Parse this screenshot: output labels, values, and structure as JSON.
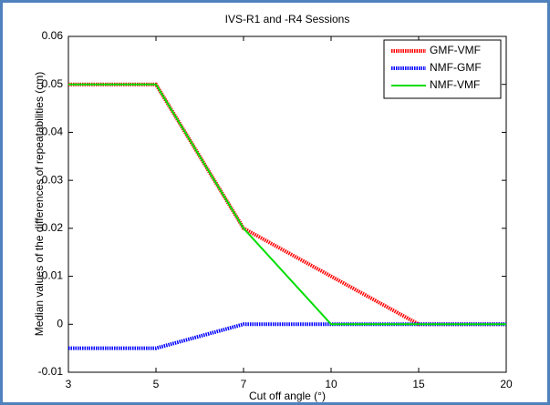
{
  "chart_data": {
    "type": "line",
    "title": "IVS-R1 and -R4 Sessions",
    "x_label": "Cut off angle (°)",
    "y_label": "Median values of the differences of repeatabilities  (cm)",
    "categories": [
      "3",
      "5",
      "7",
      "10",
      "15",
      "20"
    ],
    "series": [
      {
        "name": "GMF-VMF",
        "color": "#ff0000",
        "style": "dotted",
        "values": [
          0.05,
          0.05,
          0.02,
          0.01,
          0,
          0
        ]
      },
      {
        "name": "NMF-GMF",
        "color": "#0000ff",
        "style": "dotted",
        "values": [
          -0.005,
          -0.005,
          0,
          0,
          0,
          0
        ]
      },
      {
        "name": "NMF-VMF",
        "color": "#00dd00",
        "style": "solid",
        "values": [
          0.05,
          0.05,
          0.02,
          0,
          0,
          0
        ]
      }
    ],
    "ylim": [
      -0.01,
      0.06
    ],
    "yticks": [
      -0.01,
      0,
      0.01,
      0.02,
      0.03,
      0.04,
      0.05,
      0.06
    ],
    "grid": false,
    "legend": "top-right"
  }
}
